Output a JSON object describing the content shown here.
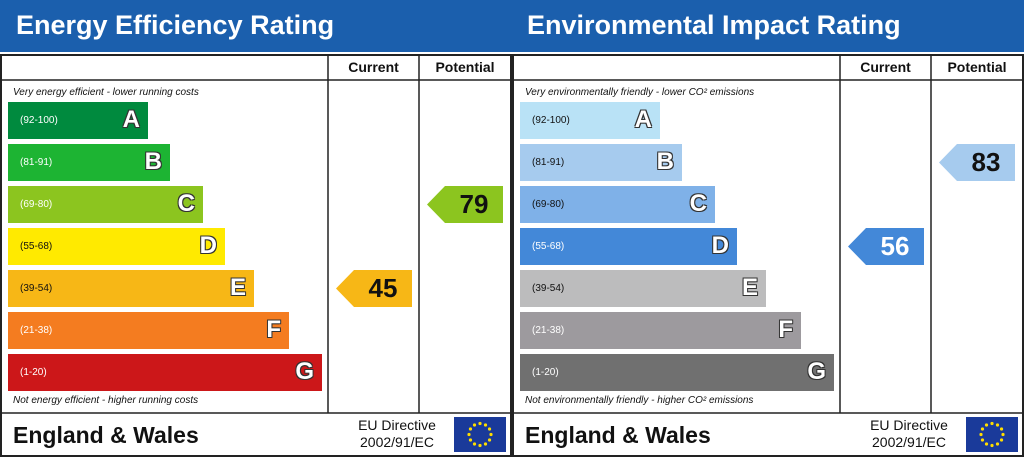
{
  "chart_data": [
    {
      "type": "bar",
      "title": "Energy Efficiency Rating",
      "columns": [
        "Current",
        "Potential"
      ],
      "top_note": "Very energy efficient - lower running costs",
      "bottom_note": "Not energy efficient - higher running costs",
      "bands": [
        {
          "range": "(92-100)",
          "letter": "A",
          "color": "#008a3e"
        },
        {
          "range": "(81-91)",
          "letter": "B",
          "color": "#1db433"
        },
        {
          "range": "(69-80)",
          "letter": "C",
          "color": "#8cc51f"
        },
        {
          "range": "(55-68)",
          "letter": "D",
          "color": "#ffea00"
        },
        {
          "range": "(39-54)",
          "letter": "E",
          "color": "#f7b716"
        },
        {
          "range": "(21-38)",
          "letter": "F",
          "color": "#f47c20"
        },
        {
          "range": "(1-20)",
          "letter": "G",
          "color": "#cc1719"
        }
      ],
      "current": {
        "value": 45,
        "band": "E",
        "color": "#f7b716"
      },
      "potential": {
        "value": 79,
        "band": "C",
        "color": "#8cc51f"
      }
    },
    {
      "type": "bar",
      "title": "Environmental Impact Rating",
      "columns": [
        "Current",
        "Potential"
      ],
      "top_note": "Very environmentally friendly - lower CO² emissions",
      "bottom_note": "Not environmentally friendly - higher CO² emissions",
      "bands": [
        {
          "range": "(92-100)",
          "letter": "A",
          "color": "#b9e2f6"
        },
        {
          "range": "(81-91)",
          "letter": "B",
          "color": "#a6cbee"
        },
        {
          "range": "(69-80)",
          "letter": "C",
          "color": "#7fb1e8"
        },
        {
          "range": "(55-68)",
          "letter": "D",
          "color": "#4388d8"
        },
        {
          "range": "(39-54)",
          "letter": "E",
          "color": "#bcbcbd"
        },
        {
          "range": "(21-38)",
          "letter": "F",
          "color": "#9d9a9e"
        },
        {
          "range": "(1-20)",
          "letter": "G",
          "color": "#707070"
        }
      ],
      "current": {
        "value": 56,
        "band": "D",
        "color": "#4388d8"
      },
      "potential": {
        "value": 83,
        "band": "B",
        "color": "#a6cbee"
      }
    }
  ],
  "footer": {
    "region": "England & Wales",
    "directive_line1": "EU Directive",
    "directive_line2": "2002/91/EC",
    "flag_icon": "eu-flag-icon"
  }
}
